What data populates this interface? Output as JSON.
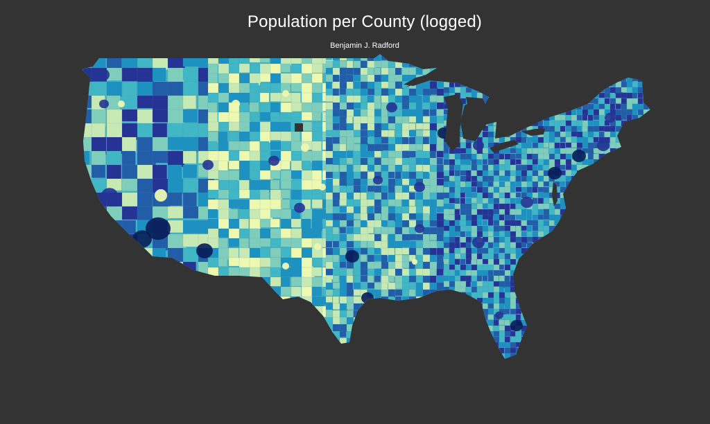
{
  "title": "Population per County (logged)",
  "subtitle": "Benjamin J. Radford",
  "colors": {
    "background": "#333333",
    "text": "#ffffff",
    "scale": [
      "#edf8b1",
      "#c7e9b4",
      "#7fcdbb",
      "#41b6c4",
      "#1d91c0",
      "#225ea8",
      "#253494",
      "#081d58"
    ],
    "missing": "#333333"
  },
  "map": {
    "region": "Contiguous United States",
    "unit": "county",
    "variable": "log(population)",
    "color_scale": "YlGnBu"
  }
}
